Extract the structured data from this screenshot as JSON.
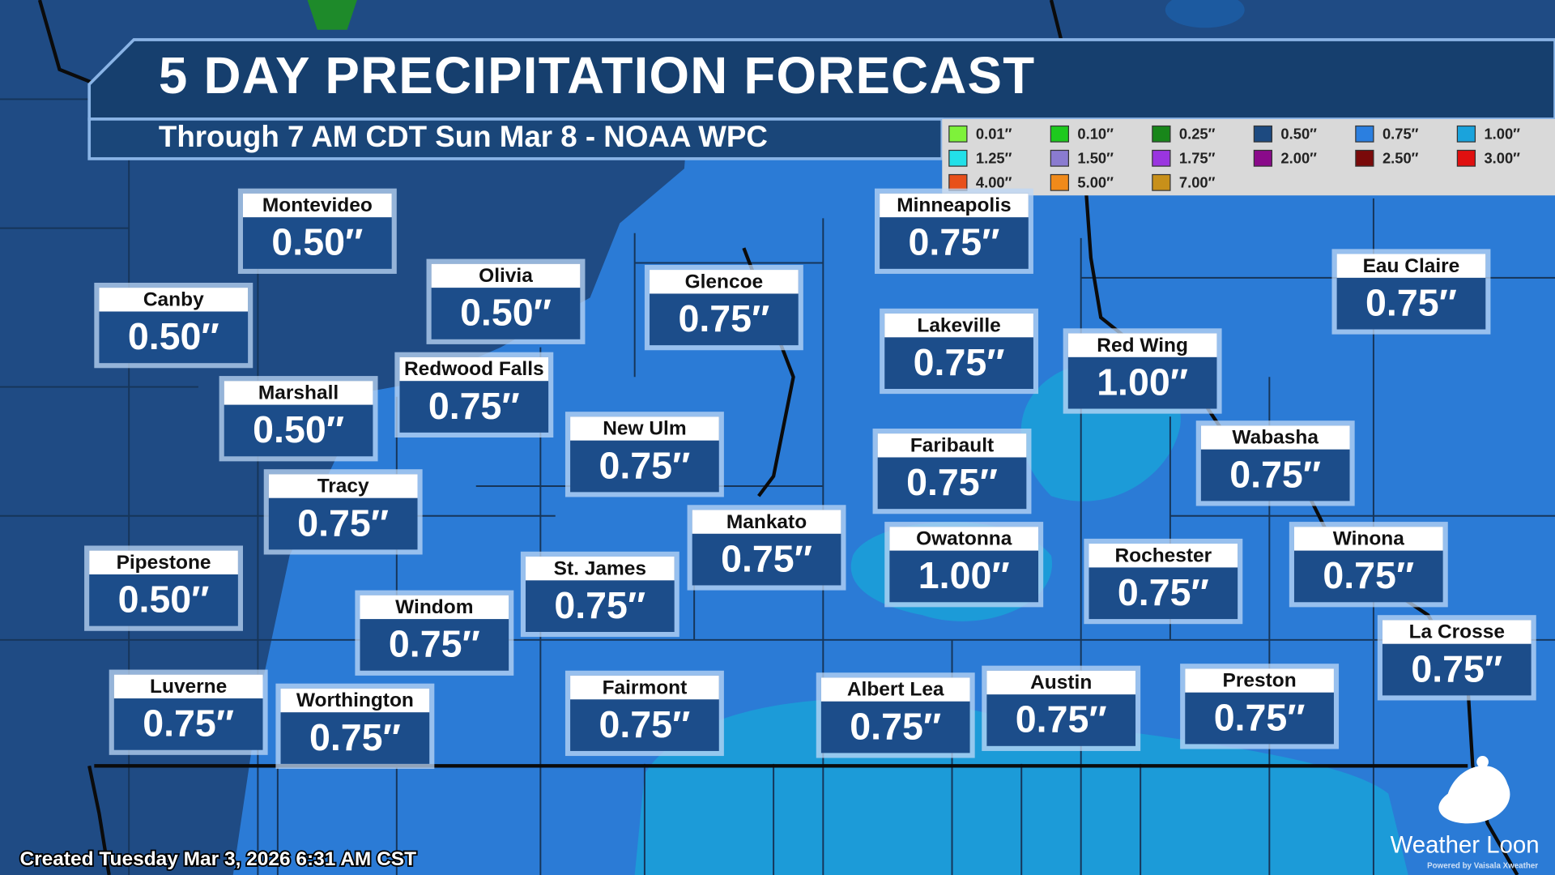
{
  "header": {
    "title": "5 DAY PRECIPITATION FORECAST",
    "subtitle": "Through 7 AM CDT Sun Mar 8 - NOAA WPC"
  },
  "legend": [
    {
      "label": "0.01″",
      "color": "#7ef23a"
    },
    {
      "label": "0.10″",
      "color": "#1ec91e"
    },
    {
      "label": "0.25″",
      "color": "#18861a"
    },
    {
      "label": "0.50″",
      "color": "#1d4a80"
    },
    {
      "label": "0.75″",
      "color": "#2b7fe0"
    },
    {
      "label": "1.00″",
      "color": "#1aa3dc"
    },
    {
      "label": "1.25″",
      "color": "#22e0e8"
    },
    {
      "label": "1.50″",
      "color": "#8a7bd0"
    },
    {
      "label": "1.75″",
      "color": "#9a35e0"
    },
    {
      "label": "2.00″",
      "color": "#8a0a8a"
    },
    {
      "label": "2.50″",
      "color": "#7a0a0a"
    },
    {
      "label": "3.00″",
      "color": "#e01010"
    },
    {
      "label": "4.00″",
      "color": "#e8501a"
    },
    {
      "label": "5.00″",
      "color": "#f08a1a"
    },
    {
      "label": "7.00″",
      "color": "#c8901a"
    }
  ],
  "cities": [
    {
      "name": "Montevideo",
      "value": "0.50″"
    },
    {
      "name": "Canby",
      "value": "0.50″"
    },
    {
      "name": "Olivia",
      "value": "0.50″"
    },
    {
      "name": "Glencoe",
      "value": "0.75″"
    },
    {
      "name": "Minneapolis",
      "value": "0.75″"
    },
    {
      "name": "Lakeville",
      "value": "0.75″"
    },
    {
      "name": "Red Wing",
      "value": "1.00″"
    },
    {
      "name": "Eau Claire",
      "value": "0.75″"
    },
    {
      "name": "Marshall",
      "value": "0.50″"
    },
    {
      "name": "Redwood Falls",
      "value": "0.75″"
    },
    {
      "name": "New Ulm",
      "value": "0.75″"
    },
    {
      "name": "Faribault",
      "value": "0.75″"
    },
    {
      "name": "Wabasha",
      "value": "0.75″"
    },
    {
      "name": "Tracy",
      "value": "0.75″"
    },
    {
      "name": "Mankato",
      "value": "0.75″"
    },
    {
      "name": "Owatonna",
      "value": "1.00″"
    },
    {
      "name": "Rochester",
      "value": "0.75″"
    },
    {
      "name": "Winona",
      "value": "0.75″"
    },
    {
      "name": "Pipestone",
      "value": "0.50″"
    },
    {
      "name": "St. James",
      "value": "0.75″"
    },
    {
      "name": "Windom",
      "value": "0.75″"
    },
    {
      "name": "La Crosse",
      "value": "0.75″"
    },
    {
      "name": "Luverne",
      "value": "0.75″"
    },
    {
      "name": "Worthington",
      "value": "0.75″"
    },
    {
      "name": "Fairmont",
      "value": "0.75″"
    },
    {
      "name": "Albert Lea",
      "value": "0.75″"
    },
    {
      "name": "Austin",
      "value": "0.75″"
    },
    {
      "name": "Preston",
      "value": "0.75″"
    }
  ],
  "footer": {
    "created": "Created Tuesday Mar 3, 2026 6:31 AM CST",
    "logo": "Weather Loon",
    "powered": "Powered by Vaisala Xweather"
  }
}
